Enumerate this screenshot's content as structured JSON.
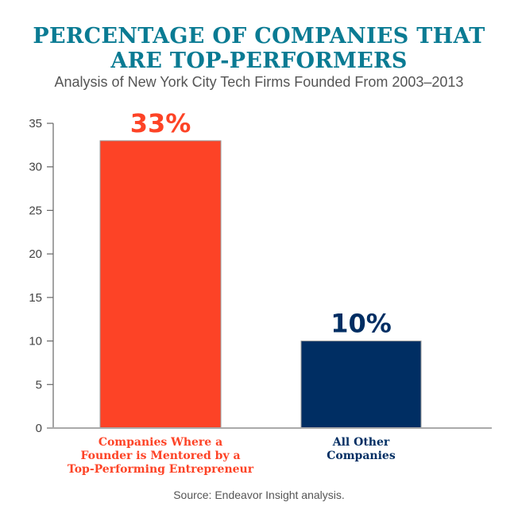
{
  "chart_data": {
    "type": "bar",
    "title": "PERCENTAGE OF COMPANIES THAT ARE TOP-PERFORMERS",
    "title_lines": [
      "PERCENTAGE OF COMPANIES THAT",
      "ARE TOP-PERFORMERS"
    ],
    "subtitle": "Analysis of New York City Tech Firms Founded From 2003–2013",
    "categories": [
      "Companies Where a Founder is Mentored by a Top-Performing Entrepreneur",
      "All Other Companies"
    ],
    "category_lines": [
      [
        "Companies Where a",
        "Founder is Mentored by a",
        "Top-Performing Entrepreneur"
      ],
      [
        "All Other",
        "Companies"
      ]
    ],
    "values": [
      33,
      10
    ],
    "data_labels": [
      "33%",
      "10%"
    ],
    "colors": [
      "#fd4326",
      "#002e63"
    ],
    "ylim": [
      0,
      35
    ],
    "yticks": [
      0,
      5,
      10,
      15,
      20,
      25,
      30,
      35
    ],
    "grid": false,
    "xlabel": "",
    "ylabel": "",
    "source": "Source: Endeavor Insight analysis."
  }
}
